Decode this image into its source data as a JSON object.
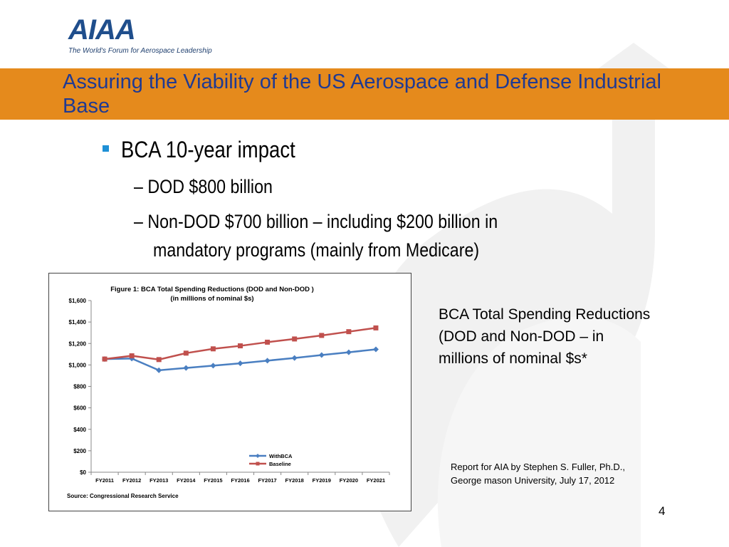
{
  "logo": {
    "name": "AIAA",
    "tagline": "The World's Forum for Aerospace Leadership"
  },
  "title": "Assuring the Viability of the US Aerospace and Defense Industrial Base",
  "bullets": {
    "main": "BCA 10-year impact",
    "sub1": "– DOD $800 billion",
    "sub2_line1": "– Non-DOD $700 billion – including $200 billion in",
    "sub2_line2": "mandatory programs (mainly from Medicare)"
  },
  "caption": "BCA Total Spending Reductions (DOD and Non-DOD – in millions of nominal $s*",
  "report": "Report for AIA by Stephen S. Fuller, Ph.D., George mason University, July 17, 2012",
  "page_number": "4",
  "colors": {
    "accent_band": "#e58a1c",
    "title_text": "#1f3a93",
    "bullet": "#1e90d6",
    "with_bca": "#4a7fc1",
    "baseline": "#c0504d"
  },
  "chart_data": {
    "type": "line",
    "title": "Figure 1: BCA Total Spending Reductions (DOD and Non-DOD )",
    "subtitle": "(in millions of nominal $s)",
    "categories": [
      "FY2011",
      "FY2012",
      "FY2013",
      "FY2014",
      "FY2015",
      "FY2016",
      "FY2017",
      "FY2018",
      "FY2019",
      "FY2020",
      "FY2021"
    ],
    "series": [
      {
        "name": "WithBCA",
        "values": [
          1055,
          1060,
          950,
          972,
          993,
          1015,
          1040,
          1065,
          1092,
          1118,
          1145
        ]
      },
      {
        "name": "Baseline",
        "values": [
          1055,
          1085,
          1050,
          1110,
          1150,
          1178,
          1212,
          1242,
          1275,
          1310,
          1345
        ]
      }
    ],
    "ylim": [
      0,
      1600
    ],
    "yticks": [
      "$0",
      "$200",
      "$400",
      "$600",
      "$800",
      "$1,000",
      "$1,200",
      "$1,400",
      "$1,600"
    ],
    "ytick_values": [
      0,
      200,
      400,
      600,
      800,
      1000,
      1200,
      1400,
      1600
    ],
    "source": "Source: Congressional Research Service",
    "legend_position": "bottom-right",
    "grid": false
  }
}
